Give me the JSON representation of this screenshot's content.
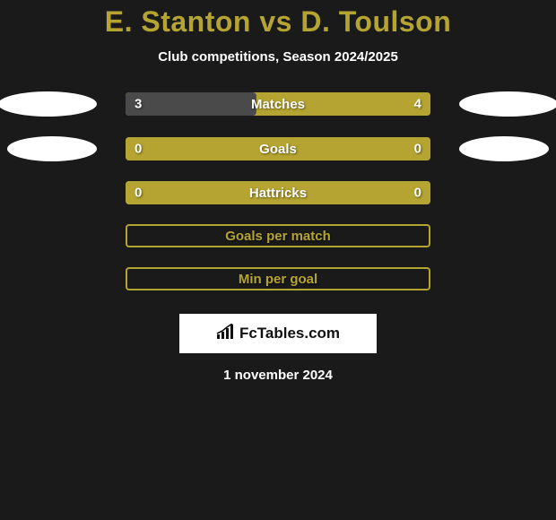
{
  "title": "E. Stanton vs D. Toulson",
  "subtitle": "Club competitions, Season 2024/2025",
  "colors": {
    "background": "#1a1a1a",
    "accent": "#b5a431",
    "dark_fill": "#4a4a4a",
    "white": "#ffffff"
  },
  "bars": [
    {
      "label": "Matches",
      "left": "3",
      "right": "4",
      "left_ratio": 0.429,
      "style": "solid",
      "show_ovals": true
    },
    {
      "label": "Goals",
      "left": "0",
      "right": "0",
      "left_ratio": 0,
      "style": "solid",
      "show_ovals": true
    },
    {
      "label": "Hattricks",
      "left": "0",
      "right": "0",
      "left_ratio": 0,
      "style": "solid",
      "show_ovals": false
    },
    {
      "label": "Goals per match",
      "left": "",
      "right": "",
      "left_ratio": 0,
      "style": "outline",
      "show_ovals": false
    },
    {
      "label": "Min per goal",
      "left": "",
      "right": "",
      "left_ratio": 0,
      "style": "outline",
      "show_ovals": false
    }
  ],
  "brand": "FcTables.com",
  "date": "1 november 2024"
}
